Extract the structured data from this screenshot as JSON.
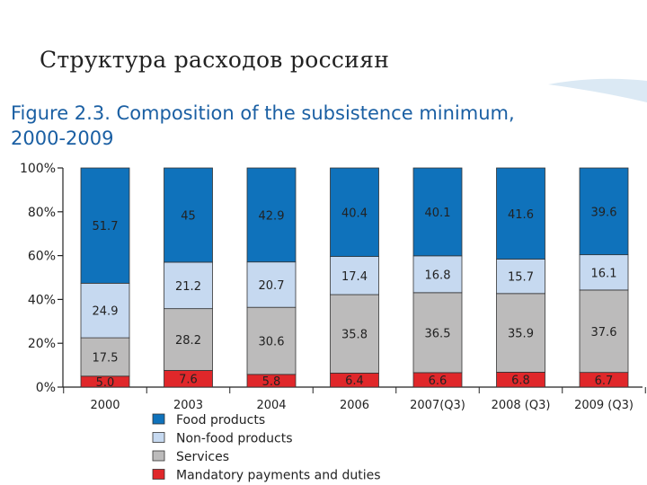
{
  "slide": {
    "title": "Структура расходов россиян"
  },
  "chart_data": {
    "type": "bar",
    "stacked": true,
    "title": "Figure 2.3. Composition of the subsistence minimum, 2000-2009",
    "title_lines": [
      "Figure 2.3. Composition of the subsistence minimum,",
      "2000-2009"
    ],
    "xlabel": "",
    "ylabel": "",
    "ylim": [
      0,
      100
    ],
    "yticks": [
      "0%",
      "20%",
      "40%",
      "60%",
      "80%",
      "100%"
    ],
    "grid": false,
    "legend_position": "bottom-left",
    "categories": [
      "2000",
      "2003",
      "2004",
      "2006",
      "2007(Q3)",
      "2008 (Q3)",
      "2009 (Q3)"
    ],
    "series": [
      {
        "name": "Mandatory payments and duties",
        "color": "#e0272a",
        "values": [
          5.0,
          7.6,
          5.8,
          6.4,
          6.6,
          6.8,
          6.7
        ],
        "labels": [
          "5.0",
          "7.6",
          "5.8",
          "6.4",
          "6.6",
          "6.8",
          "6.7"
        ]
      },
      {
        "name": "Services",
        "color": "#bcbbbb",
        "values": [
          17.5,
          28.2,
          30.6,
          35.8,
          36.5,
          35.9,
          37.6
        ],
        "labels": [
          "17.5",
          "28.2",
          "30.6",
          "35.8",
          "36.5",
          "35.9",
          "37.6"
        ]
      },
      {
        "name": "Non-food products",
        "color": "#c6d9f0",
        "values": [
          24.9,
          21.2,
          20.7,
          17.4,
          16.8,
          15.7,
          16.1
        ],
        "labels": [
          "24.9",
          "21.2",
          "20.7",
          "17.4",
          "16.8",
          "15.7",
          "16.1"
        ]
      },
      {
        "name": "Food products",
        "color": "#0f72bb",
        "values": [
          51.7,
          45,
          42.9,
          40.4,
          40.1,
          41.6,
          39.6
        ],
        "labels": [
          "51.7",
          "45",
          "42.9",
          "40.4",
          "40.1",
          "41.6",
          "39.6"
        ]
      }
    ],
    "legend_order": [
      "Food products",
      "Non-food products",
      "Services",
      "Mandatory payments and duties"
    ]
  }
}
